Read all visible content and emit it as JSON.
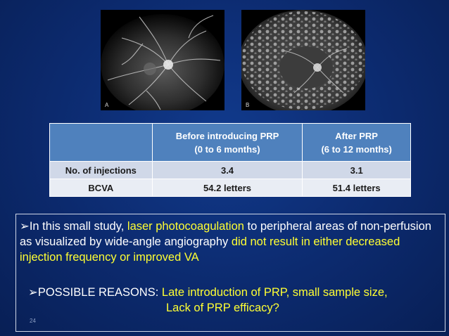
{
  "colors": {
    "background": "#0c2a6e",
    "table_header": "#4f81bd",
    "table_row_1": "#d0d8e8",
    "table_row_2": "#e9edf4",
    "highlight": "#ffff33"
  },
  "images": [
    {
      "label": "A"
    },
    {
      "label": "B"
    }
  ],
  "table": {
    "headers": [
      "",
      "Before introducing PRP",
      "(0 to 6 months)",
      "After PRP",
      "(6 to 12 months)"
    ],
    "rows": [
      {
        "label": "No. of injections",
        "before": "3.4",
        "after": "3.1"
      },
      {
        "label": "BCVA",
        "before": "54.2 letters",
        "after": "51.4 letters"
      }
    ]
  },
  "body": {
    "bullet": "➢",
    "p1_a": "In this small study, ",
    "p1_hl1": "laser photocoagulation",
    "p1_b": " to peripheral areas of non-perfusion as visualized by wide-angle angiography ",
    "p1_hl2": "did not result in either decreased injection frequency or improved VA",
    "p2_a": "POSSIBLE REASONS: ",
    "p2_hl_line1": "Late introduction of PRP, small sample size,",
    "p2_hl_line2": "Lack of PRP efficacy?"
  },
  "slide_number": "24"
}
